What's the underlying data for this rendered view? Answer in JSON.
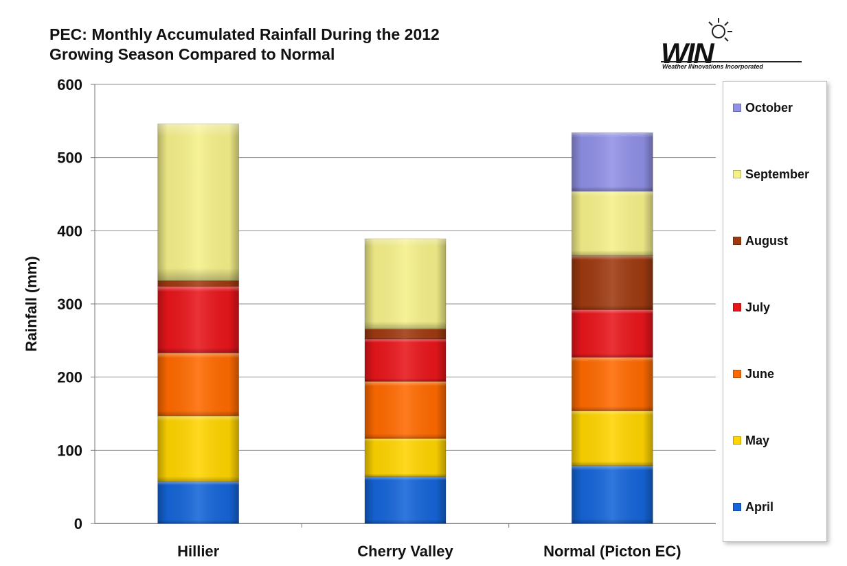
{
  "title": "PEC: Monthly Accumulated Rainfall During the 2012\nGrowing Season Compared to Normal",
  "logo": {
    "name": "WIN",
    "tagline": "Weather INnovations Incorporated"
  },
  "chart_data": {
    "type": "bar",
    "stacked": true,
    "title": "PEC: Monthly Accumulated Rainfall During the 2012 Growing Season Compared to Normal",
    "xlabel": "",
    "ylabel": "Rainfall (mm)",
    "ylim": [
      0,
      600
    ],
    "yticks": [
      0,
      100,
      200,
      300,
      400,
      500,
      600
    ],
    "grid": true,
    "legend_position": "right",
    "categories": [
      "Hillier",
      "Cherry Valley",
      "Normal (Picton EC)"
    ],
    "series": [
      {
        "name": "April",
        "color": "#1565D8",
        "values": [
          57,
          64,
          79
        ]
      },
      {
        "name": "May",
        "color": "#FFD400",
        "values": [
          90,
          52,
          75
        ]
      },
      {
        "name": "June",
        "color": "#FF6A00",
        "values": [
          86,
          78,
          73
        ]
      },
      {
        "name": "July",
        "color": "#E8161B",
        "values": [
          91,
          58,
          65
        ]
      },
      {
        "name": "August",
        "color": "#9E3A10",
        "values": [
          8,
          14,
          74
        ]
      },
      {
        "name": "September",
        "color": "#F5F08A",
        "values": [
          214,
          123,
          88
        ]
      },
      {
        "name": "October",
        "color": "#9090E6",
        "values": [
          0,
          0,
          80
        ]
      }
    ]
  }
}
